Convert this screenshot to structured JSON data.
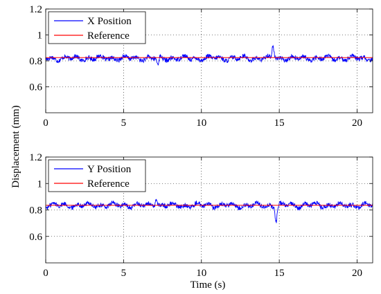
{
  "figure": {
    "shared_ylabel": "Displacement (mm)",
    "shared_xlabel": "Time (s)"
  },
  "chart_data": [
    {
      "type": "line",
      "title": "",
      "xlabel": "",
      "ylabel": "Displacement (mm)",
      "xlim": [
        0,
        21
      ],
      "ylim": [
        0.4,
        1.2
      ],
      "xticks": [
        0,
        5,
        10,
        15,
        20
      ],
      "yticks": [
        0.6,
        0.8,
        1,
        1.2
      ],
      "ytick_labels": [
        "0.6",
        "0.8",
        "1",
        "1.2"
      ],
      "grid": true,
      "legend_position": "top-left",
      "series": [
        {
          "name": "X Position",
          "color": "#0000ff",
          "kind": "noisy",
          "x_range": [
            0,
            21
          ],
          "mean": 0.82,
          "noise_amplitude": 0.025,
          "events": [
            {
              "t": 7.2,
              "value": 0.76
            },
            {
              "t": 14.6,
              "value": 0.92
            }
          ]
        },
        {
          "name": "Reference",
          "color": "#ff0000",
          "kind": "constant",
          "x": [
            0,
            21
          ],
          "y": [
            0.825,
            0.825
          ]
        }
      ]
    },
    {
      "type": "line",
      "title": "",
      "xlabel": "Time (s)",
      "ylabel": "Displacement (mm)",
      "xlim": [
        0,
        21
      ],
      "ylim": [
        0.4,
        1.2
      ],
      "xticks": [
        0,
        5,
        10,
        15,
        20
      ],
      "yticks": [
        0.6,
        0.8,
        1,
        1.2
      ],
      "ytick_labels": [
        "0.6",
        "0.8",
        "1",
        "1.2"
      ],
      "grid": true,
      "legend_position": "top-left",
      "series": [
        {
          "name": "Y Position",
          "color": "#0000ff",
          "kind": "noisy",
          "x_range": [
            0,
            21
          ],
          "mean": 0.835,
          "noise_amplitude": 0.025,
          "events": [
            {
              "t": 7.1,
              "value": 0.9
            },
            {
              "t": 14.8,
              "value": 0.72
            }
          ]
        },
        {
          "name": "Reference",
          "color": "#ff0000",
          "kind": "constant",
          "x": [
            0,
            21
          ],
          "y": [
            0.835,
            0.835
          ]
        }
      ]
    }
  ]
}
